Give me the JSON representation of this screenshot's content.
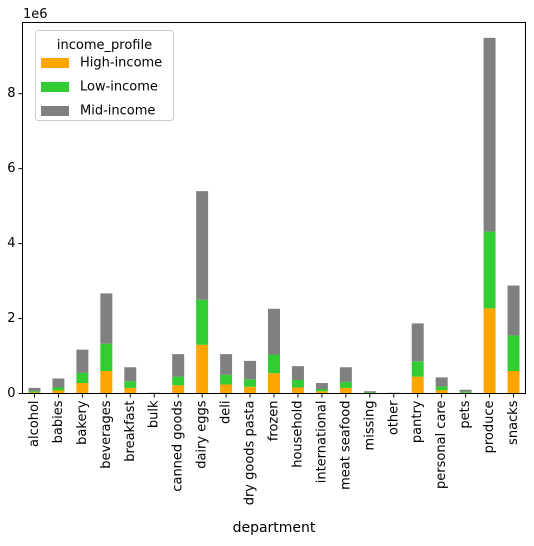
{
  "chart_data": {
    "type": "bar",
    "stacked": true,
    "categories": [
      "alcohol",
      "babies",
      "bakery",
      "beverages",
      "breakfast",
      "bulk",
      "canned goods",
      "dairy eggs",
      "deli",
      "dry goods pasta",
      "frozen",
      "household",
      "international",
      "meat seafood",
      "missing",
      "other",
      "pantry",
      "personal care",
      "pets",
      "produce",
      "snacks"
    ],
    "series": [
      {
        "name": "High-income",
        "color": "#FFA500",
        "values": [
          30000,
          80000,
          280000,
          600000,
          150000,
          5000,
          220000,
          1300000,
          240000,
          180000,
          540000,
          160000,
          60000,
          150000,
          10000,
          5000,
          450000,
          90000,
          20000,
          2270000,
          600000
        ]
      },
      {
        "name": "Low-income",
        "color": "#32CD32",
        "values": [
          30000,
          80000,
          270000,
          730000,
          180000,
          5000,
          230000,
          1200000,
          260000,
          200000,
          500000,
          200000,
          60000,
          160000,
          20000,
          5000,
          410000,
          100000,
          30000,
          2050000,
          950000
        ]
      },
      {
        "name": "Mid-income",
        "color": "#808080",
        "values": [
          90000,
          240000,
          620000,
          1340000,
          370000,
          10000,
          600000,
          2900000,
          550000,
          490000,
          1220000,
          370000,
          160000,
          390000,
          30000,
          10000,
          1010000,
          240000,
          50000,
          5170000,
          1330000
        ]
      }
    ],
    "multiplier_label": "1e6",
    "xlabel": "department",
    "ylabel": "",
    "ylim": [
      0,
      9900000
    ],
    "yticks": [
      0,
      2,
      4,
      6,
      8
    ],
    "legend": {
      "title": "income_profile",
      "position": "top-left"
    },
    "grid": false
  }
}
